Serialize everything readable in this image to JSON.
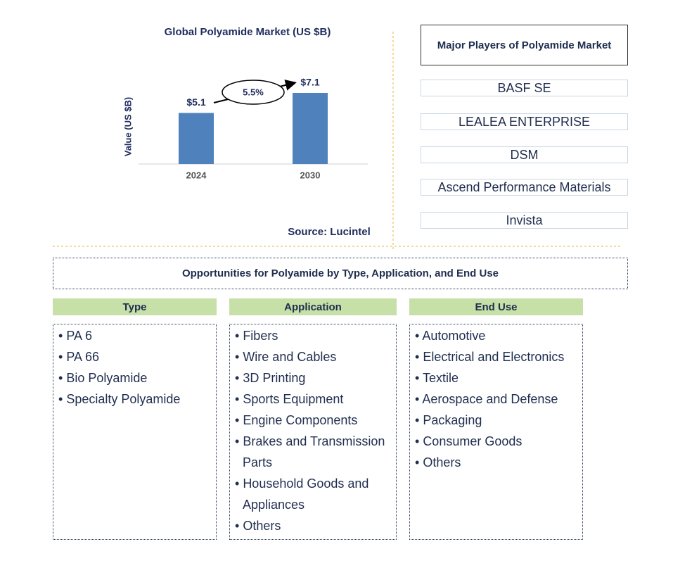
{
  "chart_data": {
    "type": "bar",
    "title": "Global Polyamide Market (US $B)",
    "y_label": "Value (US $B)",
    "categories": [
      "2024",
      "2030"
    ],
    "values": [
      5.1,
      7.1
    ],
    "value_labels": [
      "$5.1",
      "$7.1"
    ],
    "color": "#4f81bd",
    "ylim": [
      0,
      9
    ],
    "annotation": "5.5%",
    "source": "Source: Lucintel"
  },
  "players": {
    "title": "Major Players of Polyamide Market",
    "items": [
      "BASF SE",
      "LEALEA ENTERPRISE",
      "DSM",
      "Ascend Performance Materials",
      "Invista"
    ]
  },
  "opportunities": {
    "title": "Opportunities for Polyamide by Type, Application, and End Use",
    "columns": [
      {
        "header": "Type",
        "items": [
          "PA 6",
          "PA 66",
          "Bio Polyamide",
          "Specialty Polyamide"
        ]
      },
      {
        "header": "Application",
        "items": [
          "Fibers",
          "Wire and Cables",
          "3D Printing",
          "Sports Equipment",
          "Engine Components",
          "Brakes and Transmission Parts",
          "Household Goods and Appliances",
          "Others"
        ]
      },
      {
        "header": "End Use",
        "items": [
          "Automotive",
          "Electrical and Electronics",
          "Textile",
          "Aerospace and Defense",
          "Packaging",
          "Consumer Goods",
          "Others"
        ]
      }
    ]
  }
}
